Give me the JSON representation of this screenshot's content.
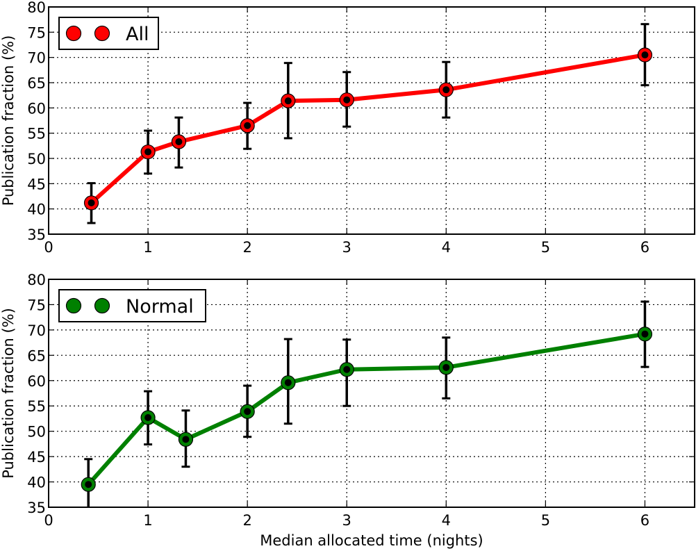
{
  "chart_data": [
    {
      "type": "line",
      "xlabel": "",
      "ylabel": "Publication fraction (%)",
      "xlim": [
        0,
        6.5
      ],
      "ylim": [
        35,
        80
      ],
      "xticks": [
        0,
        1,
        2,
        3,
        4,
        5,
        6
      ],
      "yticks": [
        35,
        40,
        45,
        50,
        55,
        60,
        65,
        70,
        75,
        80
      ],
      "grid": true,
      "legend_position": "top-left",
      "series": [
        {
          "name": "All",
          "color": "#ff0000",
          "x": [
            0.43,
            1.0,
            1.31,
            2.0,
            2.41,
            3.0,
            4.0,
            6.0
          ],
          "y": [
            41.2,
            51.3,
            53.3,
            56.5,
            61.4,
            61.6,
            63.6,
            70.5
          ],
          "err_low": [
            37.2,
            47.0,
            48.2,
            51.9,
            54.0,
            56.3,
            58.1,
            64.5
          ],
          "err_high": [
            45.1,
            55.5,
            58.1,
            61.0,
            68.9,
            67.1,
            69.1,
            76.6
          ]
        }
      ]
    },
    {
      "type": "line",
      "xlabel": "Median allocated time (nights)",
      "ylabel": "Publication fraction (%)",
      "xlim": [
        0,
        6.5
      ],
      "ylim": [
        35,
        80
      ],
      "xticks": [
        0,
        1,
        2,
        3,
        4,
        5,
        6
      ],
      "yticks": [
        35,
        40,
        45,
        50,
        55,
        60,
        65,
        70,
        75,
        80
      ],
      "grid": true,
      "legend_position": "top-left",
      "series": [
        {
          "name": "Normal",
          "color": "#008000",
          "x": [
            0.4,
            1.0,
            1.38,
            2.0,
            2.41,
            3.0,
            4.0,
            6.0
          ],
          "y": [
            39.5,
            52.7,
            48.4,
            53.9,
            59.6,
            62.2,
            62.6,
            69.2
          ],
          "err_low": [
            34.6,
            47.4,
            43.0,
            48.9,
            51.5,
            55.0,
            56.5,
            62.7
          ],
          "err_high": [
            44.5,
            57.9,
            54.1,
            59.0,
            68.2,
            68.1,
            68.5,
            75.6
          ]
        }
      ]
    }
  ]
}
